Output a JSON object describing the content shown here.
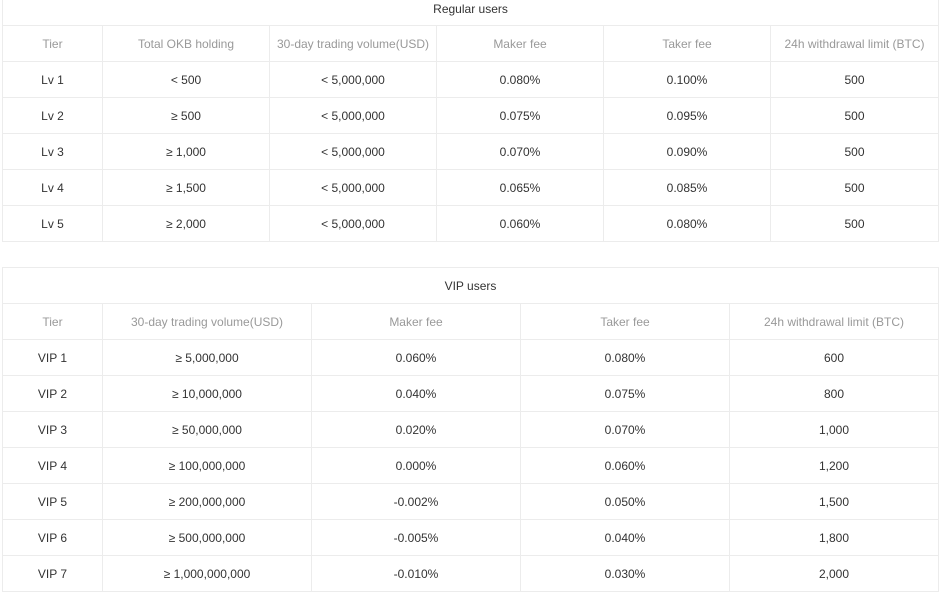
{
  "regular": {
    "title": "Regular users",
    "headers": [
      "Tier",
      "Total OKB holding",
      "30-day trading volume(USD)",
      "Maker fee",
      "Taker fee",
      "24h withdrawal limit (BTC)"
    ],
    "rows": [
      [
        "Lv 1",
        "< 500",
        "< 5,000,000",
        "0.080%",
        "0.100%",
        "500"
      ],
      [
        "Lv 2",
        "≥ 500",
        "< 5,000,000",
        "0.075%",
        "0.095%",
        "500"
      ],
      [
        "Lv 3",
        "≥ 1,000",
        "< 5,000,000",
        "0.070%",
        "0.090%",
        "500"
      ],
      [
        "Lv 4",
        "≥ 1,500",
        "< 5,000,000",
        "0.065%",
        "0.085%",
        "500"
      ],
      [
        "Lv 5",
        "≥ 2,000",
        "< 5,000,000",
        "0.060%",
        "0.080%",
        "500"
      ]
    ]
  },
  "vip": {
    "title": "VIP users",
    "headers": [
      "Tier",
      "30-day trading volume(USD)",
      "Maker fee",
      "Taker fee",
      "24h withdrawal limit (BTC)"
    ],
    "rows": [
      [
        "VIP 1",
        "≥ 5,000,000",
        "0.060%",
        "0.080%",
        "600"
      ],
      [
        "VIP 2",
        "≥ 10,000,000",
        "0.040%",
        "0.075%",
        "800"
      ],
      [
        "VIP 3",
        "≥ 50,000,000",
        "0.020%",
        "0.070%",
        "1,000"
      ],
      [
        "VIP 4",
        "≥ 100,000,000",
        "0.000%",
        "0.060%",
        "1,200"
      ],
      [
        "VIP 5",
        "≥ 200,000,000",
        "-0.002%",
        "0.050%",
        "1,500"
      ],
      [
        "VIP 6",
        "≥ 500,000,000",
        "-0.005%",
        "0.040%",
        "1,800"
      ],
      [
        "VIP 7",
        "≥ 1,000,000,000",
        "-0.010%",
        "0.030%",
        "2,000"
      ]
    ]
  },
  "colors": {
    "border": "#ececec",
    "header_text": "#999999",
    "body_text": "#333333"
  }
}
